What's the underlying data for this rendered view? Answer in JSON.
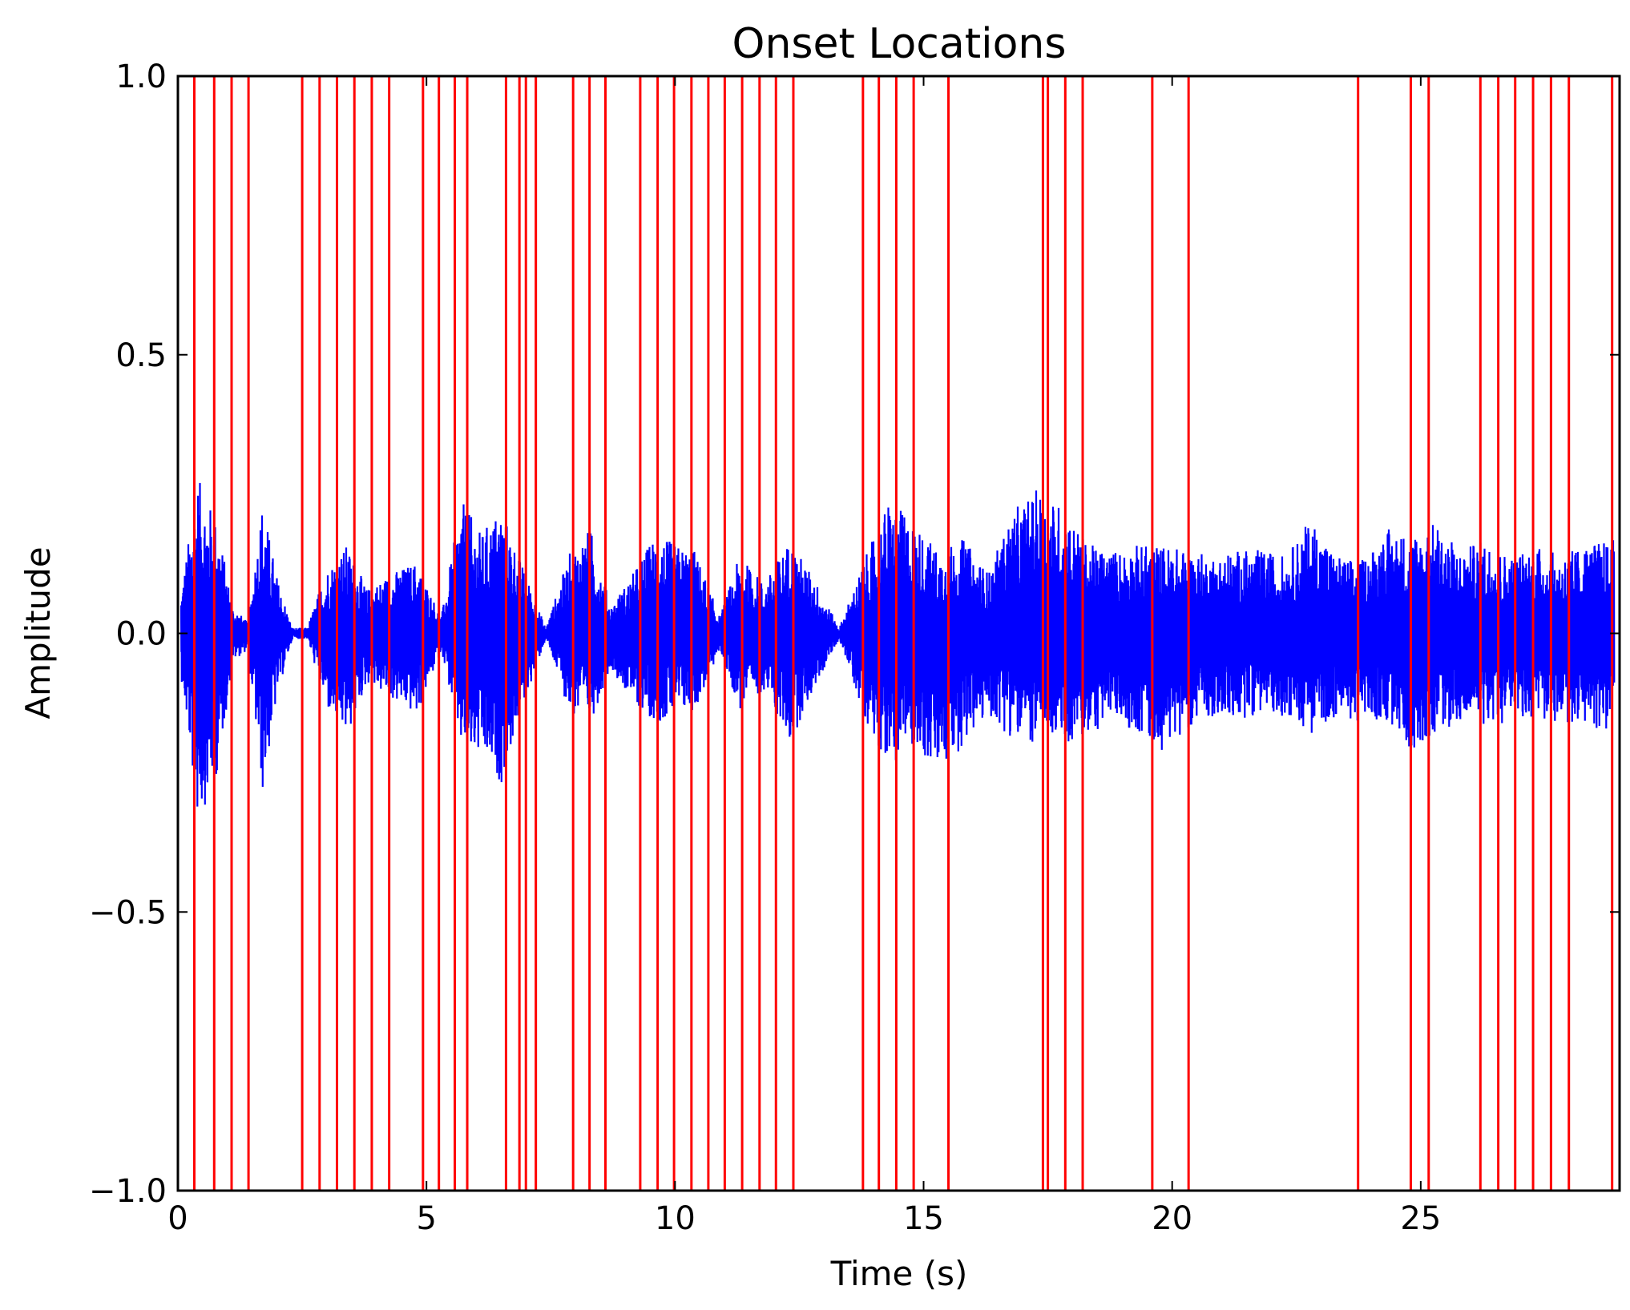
{
  "chart_data": {
    "type": "line",
    "title": "Onset Locations",
    "xlabel": "Time (s)",
    "ylabel": "Amplitude",
    "xlim": [
      0,
      29
    ],
    "ylim": [
      -1.0,
      1.0
    ],
    "x_ticks": [
      0,
      5,
      10,
      15,
      20,
      25
    ],
    "x_tick_labels": [
      "0",
      "5",
      "10",
      "15",
      "20",
      "25"
    ],
    "y_ticks": [
      1.0,
      0.5,
      0.0,
      -0.5,
      -1.0
    ],
    "y_tick_labels": [
      "1.0",
      "0.5",
      "0.0",
      "−0.5",
      "−1.0"
    ],
    "grid": false,
    "colors": {
      "waveform": "#0000ff",
      "onsets": "#ff0000"
    },
    "series": [
      {
        "kind": "waveform-envelope",
        "color": "#0000ff",
        "x": [
          0.05,
          0.4,
          0.8,
          1.1,
          1.4,
          1.7,
          2.0,
          2.3,
          2.6,
          3.0,
          3.4,
          3.8,
          4.3,
          4.8,
          5.3,
          5.7,
          6.1,
          6.5,
          6.9,
          7.4,
          7.9,
          8.3,
          8.7,
          9.1,
          9.6,
          10.0,
          10.4,
          10.9,
          11.3,
          11.8,
          12.3,
          12.8,
          13.3,
          13.8,
          14.3,
          14.8,
          15.3,
          15.8,
          16.3,
          16.8,
          17.3,
          17.8,
          18.3,
          18.8,
          19.3,
          19.8,
          20.3,
          20.8,
          21.3,
          21.8,
          22.3,
          22.8,
          23.3,
          23.8,
          24.3,
          24.8,
          25.3,
          25.8,
          26.3,
          26.8,
          27.3,
          27.8,
          28.3,
          28.9
        ],
        "max": [
          0.07,
          0.28,
          0.2,
          0.05,
          0.02,
          0.24,
          0.1,
          0.01,
          0.01,
          0.12,
          0.16,
          0.08,
          0.11,
          0.13,
          0.03,
          0.24,
          0.18,
          0.23,
          0.13,
          0.01,
          0.15,
          0.19,
          0.05,
          0.1,
          0.18,
          0.16,
          0.15,
          0.03,
          0.14,
          0.09,
          0.17,
          0.1,
          0.01,
          0.13,
          0.24,
          0.2,
          0.15,
          0.17,
          0.11,
          0.22,
          0.26,
          0.23,
          0.16,
          0.15,
          0.16,
          0.16,
          0.15,
          0.14,
          0.15,
          0.15,
          0.14,
          0.21,
          0.14,
          0.13,
          0.19,
          0.18,
          0.2,
          0.15,
          0.17,
          0.14,
          0.16,
          0.14,
          0.16,
          0.17
        ],
        "min": [
          -0.07,
          -0.34,
          -0.25,
          -0.05,
          -0.03,
          -0.29,
          -0.11,
          -0.01,
          -0.01,
          -0.14,
          -0.19,
          -0.09,
          -0.12,
          -0.15,
          -0.03,
          -0.21,
          -0.23,
          -0.27,
          -0.14,
          -0.01,
          -0.15,
          -0.16,
          -0.06,
          -0.12,
          -0.16,
          -0.15,
          -0.14,
          -0.03,
          -0.14,
          -0.1,
          -0.2,
          -0.1,
          -0.01,
          -0.15,
          -0.24,
          -0.2,
          -0.26,
          -0.2,
          -0.15,
          -0.19,
          -0.2,
          -0.2,
          -0.19,
          -0.15,
          -0.18,
          -0.21,
          -0.17,
          -0.15,
          -0.16,
          -0.14,
          -0.15,
          -0.18,
          -0.15,
          -0.16,
          -0.16,
          -0.21,
          -0.18,
          -0.16,
          -0.17,
          -0.16,
          -0.15,
          -0.17,
          -0.16,
          -0.19
        ]
      },
      {
        "kind": "onset-lines",
        "color": "#ff0000",
        "x": [
          0.33,
          0.73,
          1.08,
          1.42,
          2.5,
          2.85,
          3.2,
          3.55,
          3.9,
          4.25,
          4.93,
          5.25,
          5.57,
          5.82,
          6.6,
          6.87,
          7.0,
          7.2,
          7.95,
          8.28,
          8.6,
          9.3,
          9.65,
          9.98,
          10.33,
          10.67,
          11.0,
          11.35,
          11.7,
          12.03,
          12.38,
          13.78,
          14.1,
          14.45,
          14.8,
          15.5,
          17.4,
          17.5,
          17.85,
          18.2,
          19.6,
          20.33,
          23.74,
          24.8,
          25.16,
          26.2,
          26.56,
          26.9,
          27.26,
          27.62,
          27.98,
          28.85
        ]
      }
    ]
  }
}
